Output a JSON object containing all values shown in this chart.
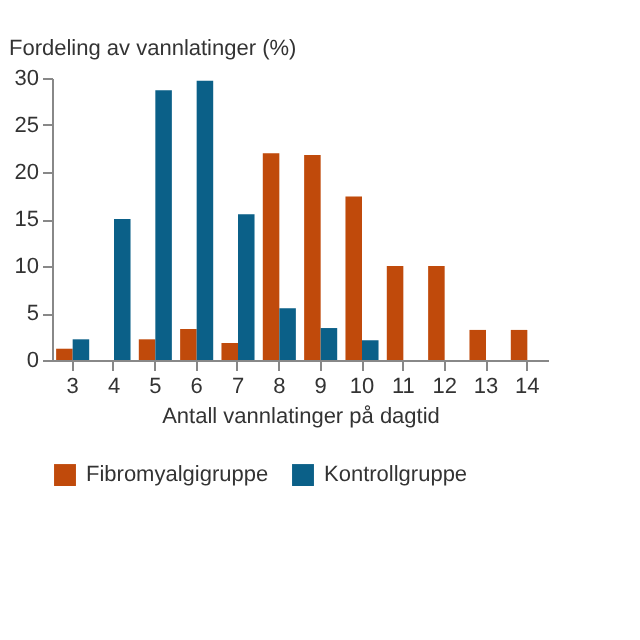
{
  "chart_data": {
    "type": "bar",
    "ylabel": "Fordeling av vannlatinger (%)",
    "xlabel": "Antall vannlatinger på dagtid",
    "categories": [
      "3",
      "4",
      "5",
      "6",
      "7",
      "8",
      "9",
      "10",
      "11",
      "12",
      "13",
      "14"
    ],
    "series": [
      {
        "name": "Fibromyalgigruppe",
        "color": "#c04a0b",
        "values": [
          1.2,
          0,
          2.2,
          3.3,
          1.8,
          22.0,
          21.8,
          17.4,
          10.0,
          10.0,
          3.2,
          3.2
        ]
      },
      {
        "name": "Kontrollgruppe",
        "color": "#0b6088",
        "values": [
          2.2,
          15.0,
          28.7,
          29.7,
          15.5,
          5.5,
          3.4,
          2.1,
          0,
          0,
          0,
          0
        ]
      }
    ],
    "ylim": [
      0,
      30
    ],
    "yticks": [
      0,
      5,
      10,
      15,
      20,
      25,
      30
    ],
    "grid": false,
    "legend": "bottom"
  }
}
